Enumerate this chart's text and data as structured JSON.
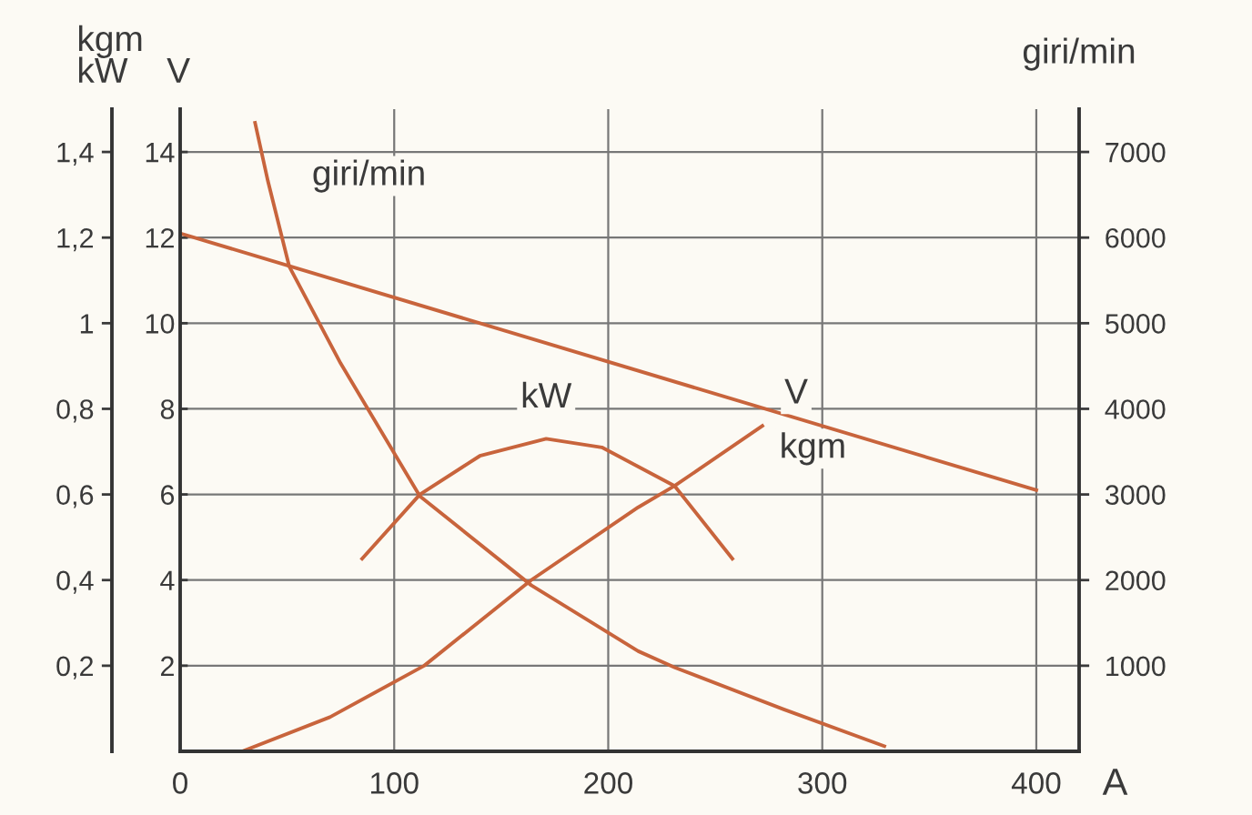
{
  "chart_data": {
    "type": "line",
    "xlabel": "A",
    "ylabel": "kgm\nkW",
    "y3label": "V",
    "y2label": "giri/min",
    "xlim": [
      0,
      420
    ],
    "xticks": [
      0,
      100,
      200,
      300,
      400
    ],
    "ylim": [
      0,
      1.5
    ],
    "yticks": [
      {
        "value": 0.2,
        "label": "0,2"
      },
      {
        "value": 0.4,
        "label": "0,4"
      },
      {
        "value": 0.6,
        "label": "0,6"
      },
      {
        "value": 0.8,
        "label": "0,8"
      },
      1,
      {
        "value": 1.2,
        "label": "1,2"
      },
      {
        "value": 1.4,
        "label": "1,4"
      }
    ],
    "y3lim": [
      0,
      15
    ],
    "y3ticks": [
      2,
      4,
      6,
      8,
      10,
      12,
      14
    ],
    "y2lim": [
      0,
      7500
    ],
    "y2ticks": [
      1000,
      2000,
      3000,
      4000,
      5000,
      6000,
      7000
    ],
    "grid": true,
    "marker": "none",
    "line_style": "solid",
    "series": [
      {
        "name": "giri/min",
        "color": "#c8643c",
        "axis": "y2",
        "x": [
          35,
          41,
          51,
          75,
          112,
          164,
          214,
          231,
          282,
          329
        ],
        "values": [
          7340,
          6660,
          5660,
          4530,
          2980,
          1940,
          1170,
          980,
          490,
          60
        ]
      },
      {
        "name": "V",
        "color": "#c8643c",
        "axis": "y3",
        "x": [
          0,
          400
        ],
        "values": [
          12.1,
          6.1
        ]
      },
      {
        "name": "kW",
        "color": "#c8643c",
        "axis": "y",
        "x": [
          85,
          112,
          140,
          171,
          197,
          214,
          231,
          258
        ],
        "values": [
          0.45,
          0.6,
          0.69,
          0.73,
          0.71,
          0.665,
          0.62,
          0.45
        ]
      },
      {
        "name": "kgm",
        "color": "#c8643c",
        "axis": "y",
        "x": [
          29,
          70,
          114,
          164,
          214,
          231,
          272
        ],
        "values": [
          0,
          0.08,
          0.2,
          0.4,
          0.57,
          0.62,
          0.76
        ]
      }
    ]
  }
}
